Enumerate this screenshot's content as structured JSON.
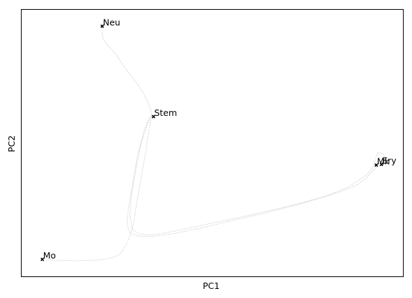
{
  "chart_data": {
    "type": "scatter",
    "title": "",
    "xlabel": "PC1",
    "ylabel": "PC2",
    "xlim": [
      0,
      100
    ],
    "ylim": [
      0,
      100
    ],
    "xticks": [],
    "yticks": [],
    "grid": false,
    "legend": "none",
    "point_color": "#000000",
    "trajectory_color": "#b0b0b0",
    "annotated_points": [
      {
        "label": "Neu",
        "x": 20.6,
        "y": 95.0
      },
      {
        "label": "Stem",
        "x": 34.3,
        "y": 60.2
      },
      {
        "label": "Mk",
        "x": 93.8,
        "y": 41.5
      },
      {
        "label": "Ery",
        "x": 95.2,
        "y": 41.8
      },
      {
        "label": "Mo",
        "x": 4.6,
        "y": 5.2
      }
    ],
    "trajectory": [
      [
        20.7,
        94.9
      ],
      [
        20.6,
        93.0
      ],
      [
        20.8,
        90.5
      ],
      [
        21.4,
        88.8
      ],
      [
        22.0,
        87.6
      ],
      [
        22.6,
        86.8
      ],
      [
        23.6,
        85.3
      ],
      [
        24.8,
        83.0
      ],
      [
        26.2,
        79.8
      ],
      [
        28.0,
        76.5
      ],
      [
        30.0,
        72.8
      ],
      [
        31.8,
        68.8
      ],
      [
        32.8,
        65.5
      ],
      [
        33.6,
        62.8
      ],
      [
        33.8,
        60.6
      ],
      [
        33.4,
        57.5
      ],
      [
        32.8,
        52.5
      ],
      [
        32.2,
        46.5
      ],
      [
        31.4,
        40.0
      ],
      [
        30.6,
        33.0
      ],
      [
        29.8,
        26.5
      ],
      [
        29.2,
        21.5
      ],
      [
        28.8,
        18.0
      ],
      [
        28.2,
        14.8
      ],
      [
        27.0,
        10.8
      ],
      [
        25.4,
        7.3
      ],
      [
        23.5,
        5.9
      ],
      [
        20.0,
        5.0
      ],
      [
        14.0,
        4.6
      ],
      [
        8.5,
        4.8
      ],
      [
        5.0,
        5.1
      ]
    ],
    "trajectory2": [
      [
        33.8,
        60.6
      ],
      [
        32.6,
        57.0
      ],
      [
        31.0,
        50.0
      ],
      [
        29.6,
        40.0
      ],
      [
        28.4,
        30.0
      ],
      [
        28.0,
        22.0
      ],
      [
        28.6,
        17.0
      ],
      [
        30.4,
        15.0
      ],
      [
        33.5,
        14.6
      ],
      [
        37.5,
        15.4
      ],
      [
        43.0,
        17.0
      ],
      [
        50.0,
        19.2
      ],
      [
        58.0,
        21.6
      ],
      [
        66.0,
        24.2
      ],
      [
        74.0,
        27.0
      ],
      [
        81.0,
        30.0
      ],
      [
        86.0,
        32.8
      ],
      [
        89.0,
        35.5
      ],
      [
        91.4,
        38.0
      ],
      [
        92.8,
        40.4
      ],
      [
        93.6,
        43.8
      ],
      [
        94.3,
        46.4
      ],
      [
        95.6,
        46.0
      ],
      [
        96.2,
        44.0
      ],
      [
        95.6,
        41.8
      ],
      [
        94.2,
        41.2
      ]
    ],
    "trajectory3": [
      [
        33.2,
        60.0
      ],
      [
        31.8,
        55.0
      ],
      [
        30.0,
        45.0
      ],
      [
        28.8,
        35.0
      ],
      [
        27.6,
        25.0
      ],
      [
        27.2,
        19.0
      ],
      [
        28.0,
        15.5
      ],
      [
        30.0,
        14.2
      ],
      [
        34.0,
        14.0
      ],
      [
        40.0,
        15.2
      ],
      [
        48.0,
        17.6
      ],
      [
        56.0,
        20.4
      ],
      [
        64.0,
        23.0
      ],
      [
        72.0,
        26.0
      ],
      [
        79.0,
        28.8
      ],
      [
        85.0,
        31.6
      ],
      [
        88.6,
        33.8
      ],
      [
        91.2,
        36.6
      ],
      [
        93.0,
        39.6
      ],
      [
        95.0,
        41.6
      ]
    ]
  }
}
